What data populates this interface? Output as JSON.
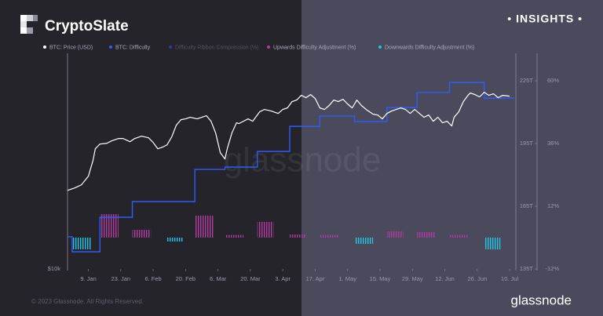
{
  "header": {
    "brand": "CryptoSlate",
    "tag": "• INSIGHTS •"
  },
  "watermark": "glassnode",
  "footer": {
    "copyright": "© 2023 Glassnode. All Rights Reserved.",
    "logo": "glassnode"
  },
  "chart_data": {
    "type": "line",
    "xlim": [
      0,
      193
    ],
    "xticks": [
      {
        "value": 9,
        "label": "9. Jan"
      },
      {
        "value": 23,
        "label": "23. Jan"
      },
      {
        "value": 37,
        "label": "6. Feb"
      },
      {
        "value": 51,
        "label": "20. Feb"
      },
      {
        "value": 65,
        "label": "6. Mar"
      },
      {
        "value": 79,
        "label": "20. Mar"
      },
      {
        "value": 93,
        "label": "3. Apr"
      },
      {
        "value": 107,
        "label": "17. Apr"
      },
      {
        "value": 121,
        "label": "1. May"
      },
      {
        "value": 135,
        "label": "15. May"
      },
      {
        "value": 149,
        "label": "29. May"
      },
      {
        "value": 163,
        "label": "12. Jun"
      },
      {
        "value": 177,
        "label": "26. Jun"
      },
      {
        "value": 191,
        "label": "10. Jul"
      }
    ],
    "ylim": [
      10000,
      35000
    ],
    "ylog": true,
    "yticks": [
      {
        "value": 10000,
        "label": "$10k"
      }
    ],
    "y2lim": [
      135,
      228
    ],
    "y2ticks": [
      {
        "value": 135,
        "label": "135T"
      },
      {
        "value": 165,
        "label": "165T"
      },
      {
        "value": 195,
        "label": "195T"
      },
      {
        "value": 225,
        "label": "225T"
      }
    ],
    "y3lim": [
      -12,
      62.4
    ],
    "y3ticks": [
      {
        "value": -12,
        "label": "-12%"
      },
      {
        "value": 12,
        "label": "12%"
      },
      {
        "value": 36,
        "label": "36%"
      },
      {
        "value": 60,
        "label": "60%"
      }
    ],
    "inactive_legend": [
      {
        "name": "Difficulty Ribbon Compression (%)",
        "color": "#2b3f9e"
      }
    ],
    "series": [
      {
        "name": "BTC: Price (USD)",
        "color": "#ffffff",
        "kind": "line",
        "axis": "y",
        "x": [
          0,
          3,
          6,
          9,
          11,
          12,
          14,
          17,
          19,
          22,
          24,
          27,
          29,
          32,
          35,
          37,
          39,
          41,
          43,
          45,
          47,
          49,
          51,
          53,
          56,
          58,
          60,
          62,
          64,
          66,
          68,
          69,
          71,
          73,
          74,
          76,
          78,
          80,
          83,
          85,
          88,
          91,
          93,
          95,
          97,
          99,
          101,
          103,
          105,
          107,
          109,
          111,
          113,
          115,
          117,
          119,
          121,
          123,
          125,
          127,
          129,
          132,
          134,
          136,
          138,
          140,
          142,
          144,
          146,
          148,
          150,
          152,
          154,
          156,
          158,
          160,
          162,
          164,
          166,
          167,
          169,
          171,
          173,
          174,
          176,
          178,
          180,
          182,
          184,
          186,
          188,
          191
        ],
        "values": [
          16590,
          16840,
          17190,
          18170,
          20110,
          21690,
          22360,
          22470,
          22820,
          23170,
          23170,
          22700,
          23170,
          23520,
          23280,
          22580,
          21690,
          21910,
          22250,
          23400,
          25250,
          26160,
          26300,
          26570,
          26300,
          26570,
          26840,
          25900,
          24000,
          21150,
          20310,
          21690,
          24000,
          25640,
          25510,
          25900,
          26300,
          25900,
          27520,
          27940,
          27660,
          27230,
          27940,
          28220,
          29390,
          29690,
          30600,
          30140,
          30750,
          29990,
          28220,
          27940,
          28650,
          29690,
          29390,
          29840,
          28940,
          28220,
          29690,
          28650,
          27940,
          27100,
          26960,
          26300,
          27230,
          27660,
          27940,
          28220,
          27940,
          27230,
          27940,
          27230,
          26570,
          26960,
          25900,
          26570,
          25640,
          25900,
          25120,
          26570,
          27520,
          29390,
          30600,
          31070,
          30750,
          30290,
          31220,
          30600,
          30910,
          30140,
          30600,
          30440
        ]
      },
      {
        "name": "BTC: Difficulty",
        "color": "#2f5cf5",
        "kind": "step",
        "axis": "y2",
        "x": [
          0,
          2,
          14,
          28,
          55,
          68,
          82,
          96,
          109,
          124,
          138,
          151,
          165,
          180,
          193
        ],
        "values": [
          150.4,
          143.2,
          159.7,
          167.2,
          182.6,
          183.7,
          191.2,
          203.2,
          208.1,
          205.5,
          212.2,
          219.4,
          224.2,
          216.7,
          216.7
        ]
      },
      {
        "name": "Upwards Difficulty Adjustment (%)",
        "color": "#b23aa0",
        "kind": "bar",
        "axis": "y3",
        "x": [
          14,
          28,
          55,
          68,
          82,
          96,
          109,
          138,
          151,
          165
        ],
        "x_end": [
          22,
          36,
          63,
          76,
          89,
          103,
          117,
          145,
          159,
          173
        ],
        "values": [
          9,
          3,
          8.4,
          1,
          6,
          1.2,
          1,
          2.4,
          2.1,
          1
        ]
      },
      {
        "name": "Downwards Difficulty Adjustment (%)",
        "color": "#1fc6e6",
        "kind": "bar",
        "axis": "y3",
        "x": [
          2,
          43,
          124,
          180
        ],
        "x_end": [
          10,
          50,
          132,
          187
        ],
        "values": [
          -4.5,
          -1.5,
          -2.4,
          -4.5
        ]
      }
    ]
  }
}
